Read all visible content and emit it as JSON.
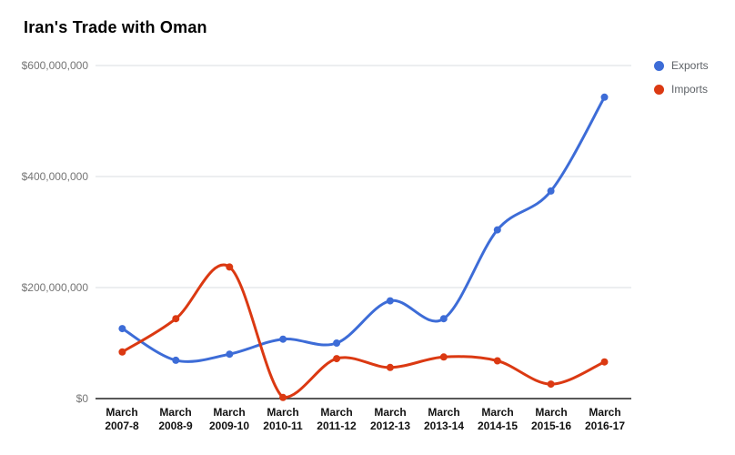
{
  "chart_data": {
    "type": "line",
    "title": "Iran's Trade with Oman",
    "curve": "smooth",
    "grid": true,
    "legend_position": "right",
    "categories": [
      "March\n2007-8",
      "March\n2008-9",
      "March\n2009-10",
      "March\n2010-11",
      "March\n2011-12",
      "March\n2012-13",
      "March\n2013-14",
      "March\n2014-15",
      "March\n2015-16",
      "March\n2016-17"
    ],
    "series": [
      {
        "name": "Exports",
        "color": "#3d6cd7",
        "values": [
          126000000,
          69000000,
          80000000,
          107000000,
          100000000,
          176000000,
          144000000,
          304000000,
          374000000,
          543000000
        ]
      },
      {
        "name": "Imports",
        "color": "#db3912",
        "values": [
          84000000,
          144000000,
          237000000,
          2000000,
          72000000,
          56000000,
          75000000,
          68000000,
          26000000,
          66000000
        ]
      }
    ],
    "y_ticks": [
      "$600,000,000",
      "$400,000,000",
      "$200,000,000",
      "$0"
    ],
    "y_tick_values": [
      600000000,
      400000000,
      200000000,
      0
    ],
    "ylim": [
      0,
      600000000
    ],
    "grid_color": "#dadce0",
    "baseline_color": "#212121"
  }
}
